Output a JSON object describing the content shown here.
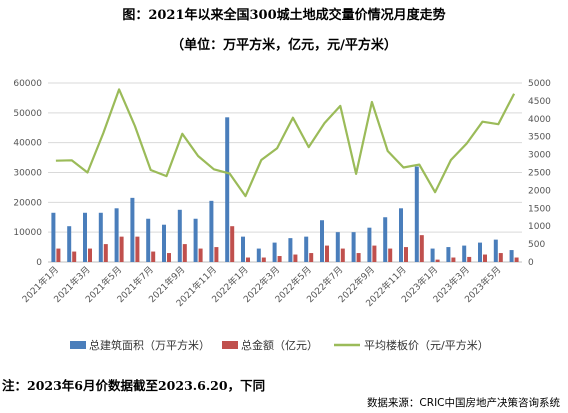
{
  "header": {
    "title": "图：2021年以来全国300城土地成交量价情况月度走势",
    "subtitle": "（单位：万平方米，亿元，元/平方米）"
  },
  "footer": {
    "note": "注：2023年6月价数据截至2023.6.20，下同",
    "source": "数据来源：CRIC中国房地产决策咨询系统"
  },
  "chart_data": {
    "type": "bar",
    "title": "",
    "categories": [
      "2021年1月",
      "2021年2月",
      "2021年3月",
      "2021年4月",
      "2021年5月",
      "2021年6月",
      "2021年7月",
      "2021年8月",
      "2021年9月",
      "2021年10月",
      "2021年11月",
      "2021年12月",
      "2022年1月",
      "2022年2月",
      "2022年3月",
      "2022年4月",
      "2022年5月",
      "2022年6月",
      "2022年7月",
      "2022年8月",
      "2022年9月",
      "2022年10月",
      "2022年11月",
      "2022年12月",
      "2023年1月",
      "2023年2月",
      "2023年3月",
      "2023年4月",
      "2023年5月",
      "2023年6月"
    ],
    "x_tick_labels": [
      "2021年1月",
      "2021年3月",
      "2021年5月",
      "2021年7月",
      "2021年9月",
      "2021年11月",
      "2022年1月",
      "2022年3月",
      "2022年5月",
      "2022年7月",
      "2022年9月",
      "2022年11月",
      "2023年1月",
      "2023年3月",
      "2023年5月"
    ],
    "y_left": {
      "min": 0,
      "max": 60000,
      "ticks": [
        "0",
        "10000",
        "20000",
        "30000",
        "40000",
        "50000",
        "60000"
      ]
    },
    "y_right": {
      "min": 0,
      "max": 5000,
      "ticks": [
        "0",
        "500",
        "1000",
        "1500",
        "2000",
        "2500",
        "3000",
        "3500",
        "4000",
        "4500",
        "5000"
      ]
    },
    "grid": true,
    "legend_position": "bottom",
    "series": [
      {
        "name": "总建筑面积（万平方米）",
        "kind": "bar",
        "axis": "left",
        "color": "#4A7EBB",
        "values": [
          16500,
          12000,
          16500,
          16500,
          18000,
          21500,
          14500,
          12500,
          17500,
          14500,
          20500,
          48500,
          8500,
          4500,
          6500,
          8000,
          8500,
          14000,
          10000,
          10000,
          11500,
          15000,
          18000,
          32000,
          4500,
          5000,
          5500,
          6500,
          7500,
          4000
        ]
      },
      {
        "name": "总金额（亿元）",
        "kind": "bar",
        "axis": "left",
        "color": "#C0504D",
        "values": [
          4500,
          3500,
          4500,
          6000,
          8500,
          8500,
          3500,
          3000,
          6000,
          4500,
          5000,
          12000,
          1500,
          1500,
          2000,
          2500,
          3000,
          5500,
          4500,
          3000,
          5500,
          4500,
          5000,
          9000,
          800,
          1500,
          1700,
          2500,
          3000,
          1500
        ]
      },
      {
        "name": "平均楼板价（元/平方米）",
        "kind": "line",
        "axis": "right",
        "color": "#9BBB59",
        "values": [
          2830,
          2840,
          2500,
          3600,
          4820,
          3800,
          2570,
          2400,
          3580,
          2960,
          2590,
          2470,
          1840,
          2850,
          3180,
          4030,
          3210,
          3880,
          4360,
          2460,
          4470,
          3100,
          2640,
          2720,
          1950,
          2850,
          3310,
          3920,
          3850,
          4700
        ]
      }
    ]
  }
}
